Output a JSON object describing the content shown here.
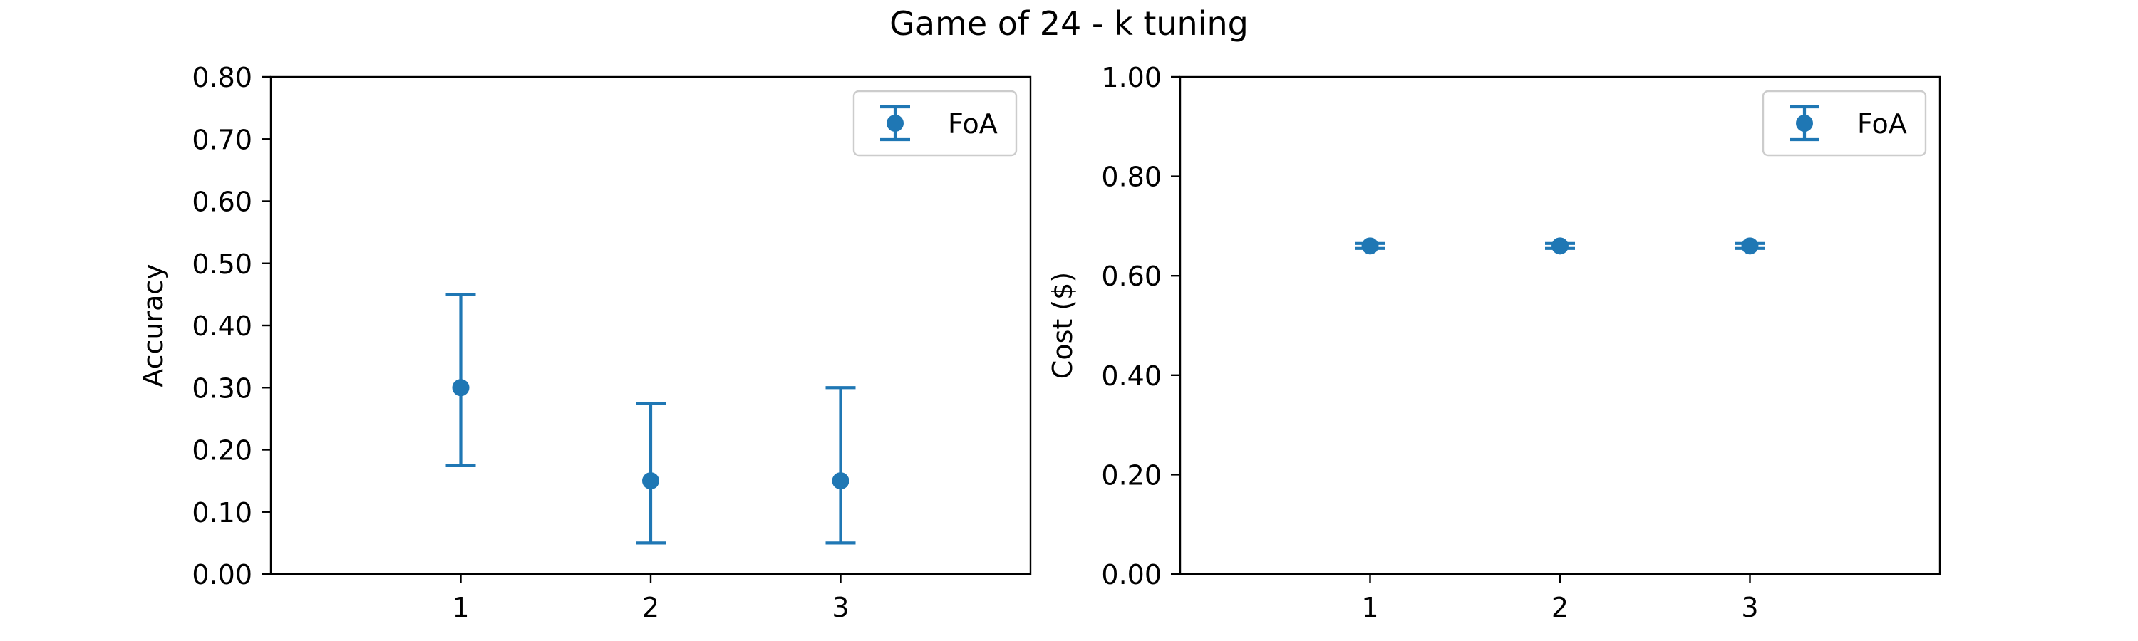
{
  "title": "Game of 24 - k tuning",
  "colors": {
    "series": "#1f77b4",
    "axes": "#000000",
    "legend_border": "#cccccc"
  },
  "chart_data": [
    {
      "type": "scatter",
      "id": "accuracy",
      "xlabel": "",
      "ylabel": "Accuracy",
      "xlim": [
        0,
        4
      ],
      "ylim": [
        0,
        0.8
      ],
      "xticks": [
        1,
        2,
        3
      ],
      "xtick_labels": [
        "1",
        "2",
        "3"
      ],
      "yticks": [
        0,
        0.1,
        0.2,
        0.3,
        0.4,
        0.5,
        0.6,
        0.7,
        0.8
      ],
      "ytick_labels": [
        "0.00",
        "0.10",
        "0.20",
        "0.30",
        "0.40",
        "0.50",
        "0.60",
        "0.70",
        "0.80"
      ],
      "legend_position": "top-right",
      "grid": false,
      "series": [
        {
          "name": "FoA",
          "x": [
            1,
            2,
            3
          ],
          "y": [
            0.3,
            0.15,
            0.15
          ],
          "err_low": [
            0.175,
            0.05,
            0.05
          ],
          "err_high": [
            0.45,
            0.275,
            0.3
          ]
        }
      ]
    },
    {
      "type": "scatter",
      "id": "cost",
      "xlabel": "",
      "ylabel": "Cost ($)",
      "xlim": [
        0,
        4
      ],
      "ylim": [
        0,
        1.0
      ],
      "xticks": [
        1,
        2,
        3
      ],
      "xtick_labels": [
        "1",
        "2",
        "3"
      ],
      "yticks": [
        0,
        0.2,
        0.4,
        0.6,
        0.8,
        1.0
      ],
      "ytick_labels": [
        "0.00",
        "0.20",
        "0.40",
        "0.60",
        "0.80",
        "1.00"
      ],
      "legend_position": "top-right",
      "grid": false,
      "series": [
        {
          "name": "FoA",
          "x": [
            1,
            2,
            3
          ],
          "y": [
            0.66,
            0.66,
            0.66
          ],
          "err_low": [
            0.655,
            0.655,
            0.655
          ],
          "err_high": [
            0.665,
            0.665,
            0.665
          ]
        }
      ]
    }
  ]
}
